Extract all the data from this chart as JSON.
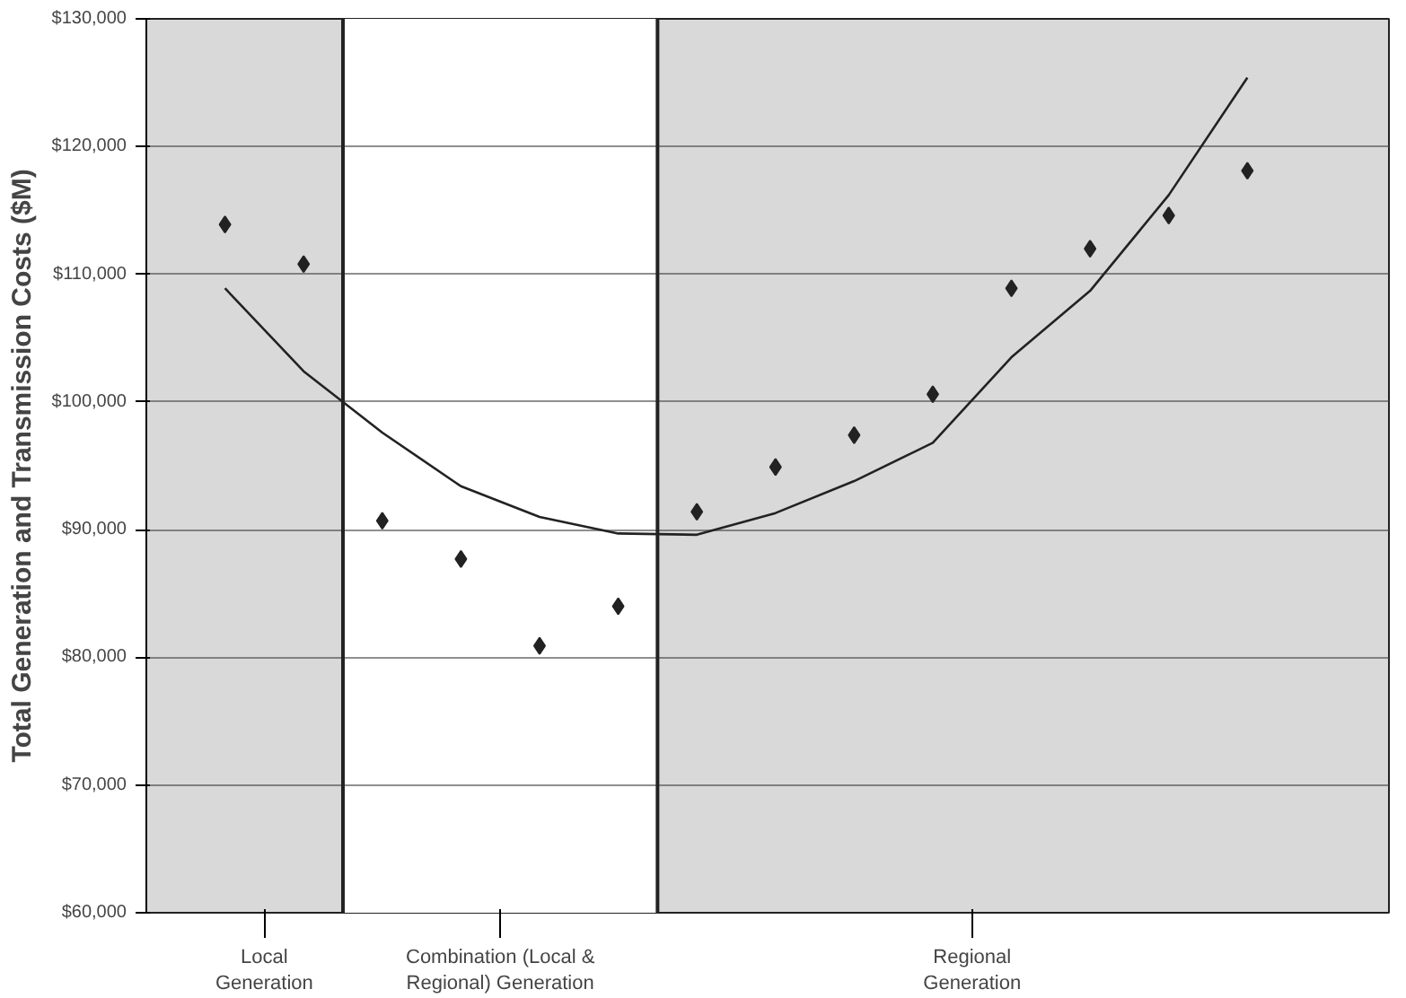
{
  "chart_data": {
    "type": "scatter",
    "ylabel": "Total Generation and Transmission Costs ($M)",
    "categories": [
      null,
      null,
      null,
      null,
      null,
      null,
      null,
      null,
      null,
      null,
      null,
      null,
      null,
      null
    ],
    "series": [
      {
        "color": "#222222",
        "values": [
          113900,
          110800,
          null,
          null,
          null,
          null,
          null,
          null,
          null,
          null,
          null,
          null,
          null,
          null
        ]
      },
      {
        "color": "#222222",
        "values": [
          null,
          null,
          90700,
          87700,
          80900,
          84000,
          null,
          null,
          null,
          null,
          null,
          null,
          null,
          null
        ]
      },
      {
        "color": "#222222",
        "values": [
          null,
          null,
          null,
          null,
          null,
          null,
          91400,
          94900,
          97400,
          100600,
          108900,
          112000,
          114600,
          118100
        ]
      },
      {
        "type": "line",
        "marker": "none",
        "color": "#222222",
        "values": [
          108900,
          102400,
          97600,
          93400,
          91000,
          89700,
          89600,
          91300,
          93800,
          96800,
          103500,
          108700,
          116200,
          125400
        ]
      }
    ],
    "annotations": [
      "Local Generation",
      "Combination (Local & Regional) Generation",
      "Regional Generation"
    ],
    "ylim": [
      60000,
      130000
    ],
    "yticks": [
      {
        "value": 60000,
        "label": "$60,000"
      },
      {
        "value": 70000,
        "label": "$70,000"
      },
      {
        "value": 80000,
        "label": "$80,000"
      },
      {
        "value": 90000,
        "label": "$90,000"
      },
      {
        "value": 100000,
        "label": "$100,000"
      },
      {
        "value": 110000,
        "label": "$110,000"
      },
      {
        "value": 120000,
        "label": "$120,000"
      },
      {
        "value": 130000,
        "label": "$130,000"
      }
    ],
    "grid": "y",
    "marker": "diamond",
    "line_style": "solid"
  }
}
